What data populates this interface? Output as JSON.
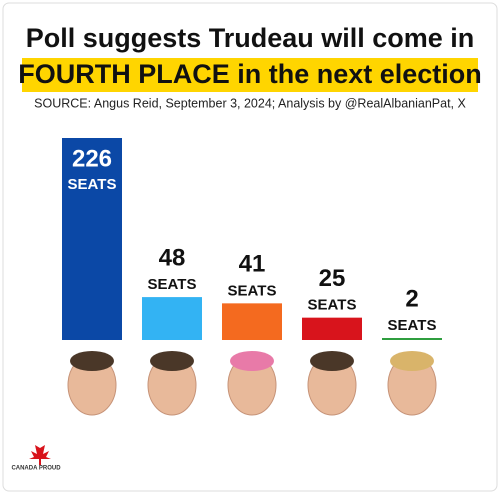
{
  "chart_data": {
    "type": "bar",
    "title": "Poll suggests Trudeau will come in",
    "subtitle": "FOURTH PLACE in the next election",
    "source": "SOURCE: Angus Reid, September 3, 2024; Analysis by @RealAlbanianPat, X",
    "unit_label": "SEATS",
    "logo": "CANADA PROUD",
    "categories": [
      null,
      null,
      null,
      null,
      null
    ],
    "values": [
      226,
      48,
      41,
      25,
      2
    ],
    "colors": [
      "#0b48a6",
      "#33b3f3",
      "#f46a1f",
      "#d8141c",
      "#2f9e3f"
    ]
  }
}
